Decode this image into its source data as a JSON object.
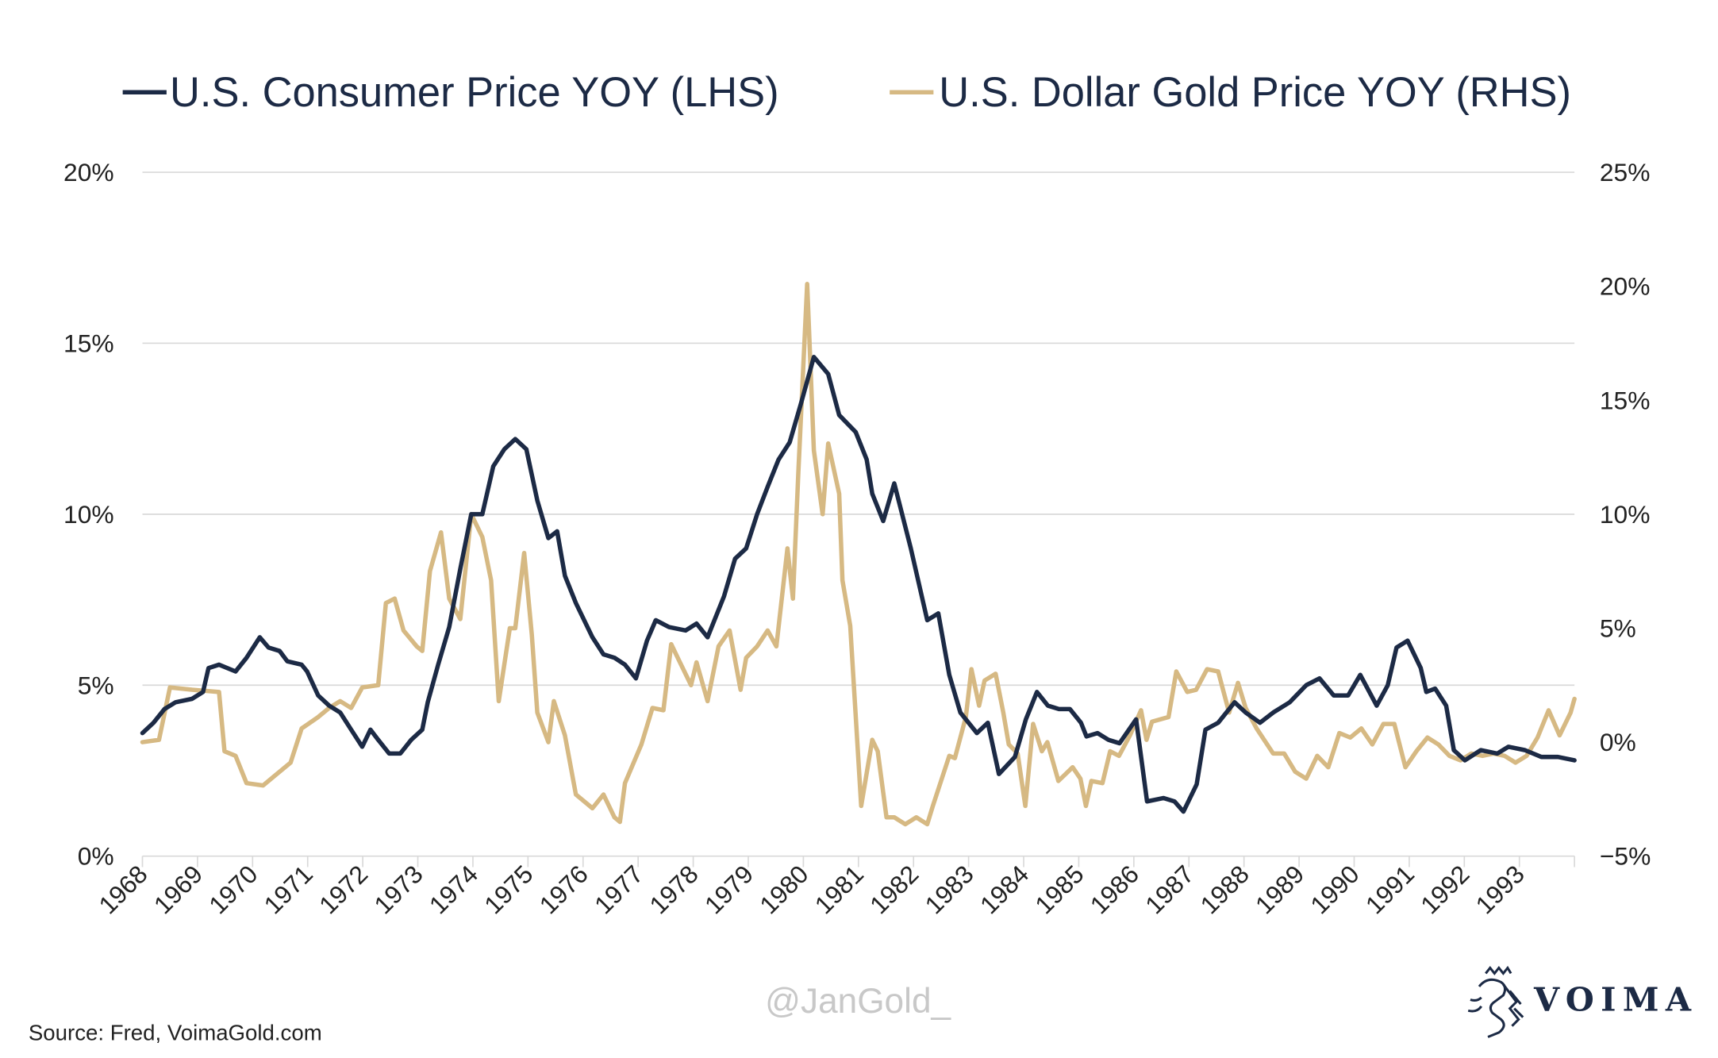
{
  "chart_data": {
    "type": "line",
    "title": "",
    "legend_placement": "top",
    "grid": true,
    "xlim": [
      1968,
      1994
    ],
    "x_ticks": [
      "1968",
      "1969",
      "1970",
      "1971",
      "1972",
      "1973",
      "1974",
      "1975",
      "1976",
      "1977",
      "1978",
      "1979",
      "1980",
      "1981",
      "1982",
      "1983",
      "1984",
      "1985",
      "1986",
      "1987",
      "1988",
      "1989",
      "1990",
      "1991",
      "1992",
      "1993"
    ],
    "y_left": {
      "range": [
        0,
        20
      ],
      "ticks": [
        0,
        5,
        10,
        15,
        20
      ],
      "tick_labels": [
        "0%",
        "5%",
        "10%",
        "15%",
        "20%"
      ]
    },
    "y_right": {
      "range": [
        -5,
        25
      ],
      "ticks": [
        -5,
        0,
        5,
        10,
        15,
        20,
        25
      ],
      "tick_labels": [
        "-5%",
        "0%",
        "5%",
        "10%",
        "15%",
        "20%",
        "25%"
      ]
    },
    "series": [
      {
        "name": "U.S. Consumer Price YOY (LHS)",
        "axis": "left",
        "color": "#1c2a45",
        "points": [
          [
            1968.0,
            3.6
          ],
          [
            1968.2,
            3.9
          ],
          [
            1968.4,
            4.3
          ],
          [
            1968.6,
            4.5
          ],
          [
            1968.9,
            4.6
          ],
          [
            1969.1,
            4.8
          ],
          [
            1969.2,
            5.5
          ],
          [
            1969.39,
            5.6
          ],
          [
            1969.69,
            5.4
          ],
          [
            1969.89,
            5.8
          ],
          [
            1970.13,
            6.4
          ],
          [
            1970.29,
            6.1
          ],
          [
            1970.49,
            6.0
          ],
          [
            1970.63,
            5.7
          ],
          [
            1970.89,
            5.6
          ],
          [
            1970.99,
            5.4
          ],
          [
            1971.19,
            4.7
          ],
          [
            1971.39,
            4.4
          ],
          [
            1971.59,
            4.2
          ],
          [
            1971.79,
            3.7
          ],
          [
            1971.99,
            3.2
          ],
          [
            1972.14,
            3.7
          ],
          [
            1972.28,
            3.4
          ],
          [
            1972.48,
            3.0
          ],
          [
            1972.68,
            3.0
          ],
          [
            1972.88,
            3.4
          ],
          [
            1973.08,
            3.7
          ],
          [
            1973.18,
            4.5
          ],
          [
            1973.37,
            5.6
          ],
          [
            1973.57,
            6.7
          ],
          [
            1973.77,
            8.4
          ],
          [
            1973.97,
            10.0
          ],
          [
            1974.17,
            10.0
          ],
          [
            1974.37,
            11.4
          ],
          [
            1974.57,
            11.9
          ],
          [
            1974.77,
            12.2
          ],
          [
            1974.97,
            11.9
          ],
          [
            1975.17,
            10.4
          ],
          [
            1975.37,
            9.3
          ],
          [
            1975.53,
            9.5
          ],
          [
            1975.67,
            8.2
          ],
          [
            1975.87,
            7.4
          ],
          [
            1976.17,
            6.4
          ],
          [
            1976.37,
            5.9
          ],
          [
            1976.57,
            5.8
          ],
          [
            1976.76,
            5.6
          ],
          [
            1976.96,
            5.2
          ],
          [
            1977.16,
            6.3
          ],
          [
            1977.32,
            6.9
          ],
          [
            1977.56,
            6.7
          ],
          [
            1977.86,
            6.6
          ],
          [
            1978.06,
            6.8
          ],
          [
            1978.26,
            6.4
          ],
          [
            1978.56,
            7.6
          ],
          [
            1978.76,
            8.7
          ],
          [
            1978.96,
            9.0
          ],
          [
            1979.16,
            10.0
          ],
          [
            1979.35,
            10.8
          ],
          [
            1979.55,
            11.6
          ],
          [
            1979.75,
            12.1
          ],
          [
            1979.95,
            13.2
          ],
          [
            1980.19,
            14.6
          ],
          [
            1980.45,
            14.1
          ],
          [
            1980.65,
            12.9
          ],
          [
            1980.95,
            12.4
          ],
          [
            1981.15,
            11.6
          ],
          [
            1981.25,
            10.6
          ],
          [
            1981.45,
            9.8
          ],
          [
            1981.65,
            10.9
          ],
          [
            1981.95,
            9.0
          ],
          [
            1982.25,
            6.9
          ],
          [
            1982.45,
            7.1
          ],
          [
            1982.65,
            5.3
          ],
          [
            1982.85,
            4.2
          ],
          [
            1983.15,
            3.6
          ],
          [
            1983.35,
            3.9
          ],
          [
            1983.55,
            2.4
          ],
          [
            1983.84,
            2.9
          ],
          [
            1984.04,
            4.0
          ],
          [
            1984.24,
            4.8
          ],
          [
            1984.44,
            4.4
          ],
          [
            1984.64,
            4.3
          ],
          [
            1984.84,
            4.3
          ],
          [
            1985.04,
            3.9
          ],
          [
            1985.14,
            3.5
          ],
          [
            1985.34,
            3.6
          ],
          [
            1985.54,
            3.4
          ],
          [
            1985.74,
            3.3
          ],
          [
            1986.04,
            4.0
          ],
          [
            1986.24,
            1.6
          ],
          [
            1986.54,
            1.7
          ],
          [
            1986.74,
            1.6
          ],
          [
            1986.9,
            1.3
          ],
          [
            1987.14,
            2.1
          ],
          [
            1987.3,
            3.7
          ],
          [
            1987.53,
            3.9
          ],
          [
            1987.83,
            4.5
          ],
          [
            1988.03,
            4.2
          ],
          [
            1988.29,
            3.9
          ],
          [
            1988.53,
            4.2
          ],
          [
            1988.83,
            4.5
          ],
          [
            1989.13,
            5.0
          ],
          [
            1989.37,
            5.2
          ],
          [
            1989.63,
            4.7
          ],
          [
            1989.89,
            4.7
          ],
          [
            1990.11,
            5.3
          ],
          [
            1990.41,
            4.4
          ],
          [
            1990.61,
            5.0
          ],
          [
            1990.77,
            6.1
          ],
          [
            1990.97,
            6.3
          ],
          [
            1991.21,
            5.5
          ],
          [
            1991.31,
            4.8
          ],
          [
            1991.47,
            4.9
          ],
          [
            1991.67,
            4.4
          ],
          [
            1991.81,
            3.1
          ],
          [
            1992.01,
            2.8
          ],
          [
            1992.3,
            3.1
          ],
          [
            1992.6,
            3.0
          ],
          [
            1992.8,
            3.2
          ],
          [
            1993.1,
            3.1
          ],
          [
            1993.4,
            2.9
          ],
          [
            1993.7,
            2.9
          ],
          [
            1994.0,
            2.8
          ]
        ]
      },
      {
        "name": "U.S. Dollar Gold Price YOY (RHS)",
        "axis": "right",
        "color": "#d6b983",
        "points": [
          [
            1968.0,
            0.0
          ],
          [
            1968.3,
            0.1
          ],
          [
            1968.5,
            2.4
          ],
          [
            1968.9,
            2.3
          ],
          [
            1969.39,
            2.2
          ],
          [
            1969.49,
            -0.4
          ],
          [
            1969.69,
            -0.6
          ],
          [
            1969.89,
            -1.8
          ],
          [
            1970.19,
            -1.9
          ],
          [
            1970.39,
            -1.5
          ],
          [
            1970.69,
            -0.9
          ],
          [
            1970.89,
            0.6
          ],
          [
            1971.19,
            1.1
          ],
          [
            1971.39,
            1.5
          ],
          [
            1971.59,
            1.8
          ],
          [
            1971.79,
            1.5
          ],
          [
            1971.99,
            2.4
          ],
          [
            1972.28,
            2.5
          ],
          [
            1972.42,
            6.1
          ],
          [
            1972.58,
            6.3
          ],
          [
            1972.74,
            4.9
          ],
          [
            1972.98,
            4.2
          ],
          [
            1973.08,
            4.0
          ],
          [
            1973.22,
            7.5
          ],
          [
            1973.42,
            9.2
          ],
          [
            1973.57,
            6.3
          ],
          [
            1973.77,
            5.4
          ],
          [
            1973.97,
            10.0
          ],
          [
            1974.17,
            9.0
          ],
          [
            1974.33,
            7.1
          ],
          [
            1974.47,
            1.8
          ],
          [
            1974.67,
            5.0
          ],
          [
            1974.77,
            5.0
          ],
          [
            1974.93,
            8.3
          ],
          [
            1975.07,
            4.7
          ],
          [
            1975.17,
            1.3
          ],
          [
            1975.37,
            0.0
          ],
          [
            1975.47,
            1.8
          ],
          [
            1975.67,
            0.3
          ],
          [
            1975.87,
            -2.3
          ],
          [
            1976.17,
            -2.9
          ],
          [
            1976.37,
            -2.3
          ],
          [
            1976.57,
            -3.3
          ],
          [
            1976.67,
            -3.5
          ],
          [
            1976.76,
            -1.8
          ],
          [
            1977.06,
            -0.1
          ],
          [
            1977.26,
            1.5
          ],
          [
            1977.46,
            1.4
          ],
          [
            1977.6,
            4.3
          ],
          [
            1977.76,
            3.5
          ],
          [
            1977.96,
            2.5
          ],
          [
            1978.06,
            3.5
          ],
          [
            1978.26,
            1.8
          ],
          [
            1978.46,
            4.2
          ],
          [
            1978.66,
            4.9
          ],
          [
            1978.86,
            2.3
          ],
          [
            1978.96,
            3.7
          ],
          [
            1979.16,
            4.2
          ],
          [
            1979.35,
            4.9
          ],
          [
            1979.51,
            4.2
          ],
          [
            1979.71,
            8.5
          ],
          [
            1979.81,
            6.3
          ],
          [
            1979.91,
            11.9
          ],
          [
            1980.07,
            20.1
          ],
          [
            1980.19,
            12.8
          ],
          [
            1980.35,
            10.0
          ],
          [
            1980.45,
            13.1
          ],
          [
            1980.65,
            10.9
          ],
          [
            1980.71,
            7.1
          ],
          [
            1980.85,
            5.1
          ],
          [
            1981.05,
            -2.8
          ],
          [
            1981.25,
            0.1
          ],
          [
            1981.35,
            -0.4
          ],
          [
            1981.51,
            -3.3
          ],
          [
            1981.65,
            -3.3
          ],
          [
            1981.85,
            -3.6
          ],
          [
            1982.05,
            -3.3
          ],
          [
            1982.25,
            -3.6
          ],
          [
            1982.35,
            -2.8
          ],
          [
            1982.65,
            -0.6
          ],
          [
            1982.75,
            -0.7
          ],
          [
            1982.95,
            1.1
          ],
          [
            1983.05,
            3.2
          ],
          [
            1983.19,
            1.6
          ],
          [
            1983.29,
            2.7
          ],
          [
            1983.49,
            3.0
          ],
          [
            1983.63,
            1.3
          ],
          [
            1983.73,
            -0.1
          ],
          [
            1983.89,
            -0.5
          ],
          [
            1984.03,
            -2.8
          ],
          [
            1984.17,
            0.8
          ],
          [
            1984.33,
            -0.4
          ],
          [
            1984.43,
            0.0
          ],
          [
            1984.63,
            -1.7
          ],
          [
            1984.89,
            -1.1
          ],
          [
            1985.03,
            -1.6
          ],
          [
            1985.13,
            -2.8
          ],
          [
            1985.23,
            -1.7
          ],
          [
            1985.43,
            -1.8
          ],
          [
            1985.57,
            -0.4
          ],
          [
            1985.73,
            -0.6
          ],
          [
            1985.93,
            0.3
          ],
          [
            1986.13,
            1.4
          ],
          [
            1986.23,
            0.1
          ],
          [
            1986.33,
            0.9
          ],
          [
            1986.63,
            1.1
          ],
          [
            1986.77,
            3.1
          ],
          [
            1986.97,
            2.2
          ],
          [
            1987.13,
            2.3
          ],
          [
            1987.33,
            3.2
          ],
          [
            1987.53,
            3.1
          ],
          [
            1987.73,
            1.3
          ],
          [
            1987.89,
            2.6
          ],
          [
            1988.03,
            1.5
          ],
          [
            1988.23,
            0.6
          ],
          [
            1988.53,
            -0.5
          ],
          [
            1988.73,
            -0.5
          ],
          [
            1988.93,
            -1.3
          ],
          [
            1989.13,
            -1.6
          ],
          [
            1989.33,
            -0.6
          ],
          [
            1989.53,
            -1.1
          ],
          [
            1989.73,
            0.4
          ],
          [
            1989.93,
            0.2
          ],
          [
            1990.13,
            0.6
          ],
          [
            1990.33,
            -0.1
          ],
          [
            1990.53,
            0.8
          ],
          [
            1990.73,
            0.8
          ],
          [
            1990.93,
            -1.1
          ],
          [
            1991.13,
            -0.4
          ],
          [
            1991.33,
            0.2
          ],
          [
            1991.53,
            -0.1
          ],
          [
            1991.73,
            -0.6
          ],
          [
            1991.93,
            -0.8
          ],
          [
            1992.13,
            -0.5
          ],
          [
            1992.33,
            -0.6
          ],
          [
            1992.53,
            -0.5
          ],
          [
            1992.73,
            -0.6
          ],
          [
            1992.93,
            -0.9
          ],
          [
            1993.13,
            -0.6
          ],
          [
            1993.33,
            0.2
          ],
          [
            1993.53,
            1.4
          ],
          [
            1993.73,
            0.3
          ],
          [
            1993.93,
            1.3
          ],
          [
            1994.0,
            1.9
          ]
        ]
      }
    ]
  },
  "footer": {
    "source": "Source: Fred, VoimaGold.com",
    "watermark": "@JanGold_",
    "brand": "VOIMA"
  }
}
